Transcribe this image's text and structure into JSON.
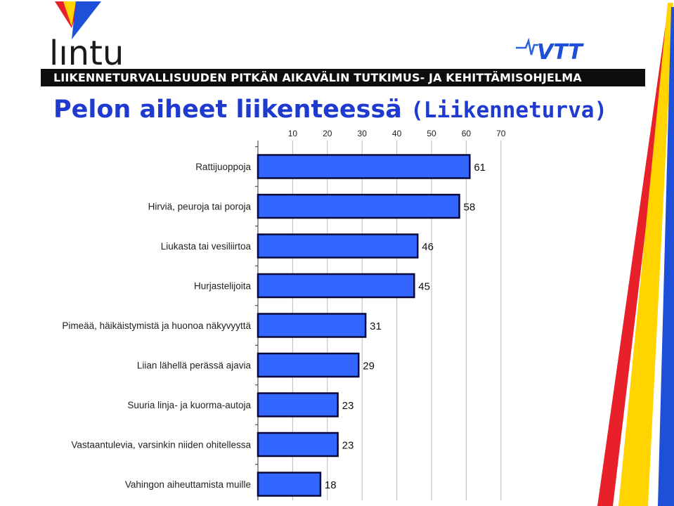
{
  "header": {
    "logo_text": "lıntu",
    "partner_logo_text": "VTT",
    "banner": "LIIKENNETURVALLISUUDEN PITKÄN AIKAVÄLIN TUTKIMUS- JA KEHITTÄMISOHJELMA",
    "title_main": "Pelon aiheet liikenteessä",
    "title_source": "(Liikenneturva)"
  },
  "colors": {
    "bar_fill": "#3366ff",
    "bar_stroke": "#0a0a3a",
    "title": "#1f3bcf",
    "banner_bg": "#0d0d0d",
    "stripe_red": "#e8202a",
    "stripe_yellow": "#ffd400",
    "stripe_blue": "#1d4fd8"
  },
  "chart_data": {
    "type": "bar",
    "orientation": "horizontal",
    "categories": [
      "Rattijuoppoja",
      "Hirviä, peuroja tai poroja",
      "Liukasta tai vesiliirtoa",
      "Hurjastelijoita",
      "Pimeää, häikäistymistä ja huonoa näkyvyyttä",
      "Liian lähellä perässä ajavia",
      "Suuria linja- ja kuorma-autoja",
      "Vastaantulevia, varsinkin niiden ohitellessa",
      "Vahingon aiheuttamista muille"
    ],
    "values": [
      61,
      58,
      46,
      45,
      31,
      29,
      23,
      23,
      18
    ],
    "data_labels": [
      "61",
      "58",
      "46",
      "45",
      "31",
      "29",
      "23",
      "23",
      "18"
    ],
    "xlim": [
      0,
      70
    ],
    "xticks": [
      10,
      20,
      30,
      40,
      50,
      60,
      70
    ],
    "xtick_labels": [
      "10",
      "20",
      "30",
      "40",
      "50",
      "60",
      "70"
    ],
    "axis_position": "top",
    "grid": true,
    "legend": "none"
  }
}
